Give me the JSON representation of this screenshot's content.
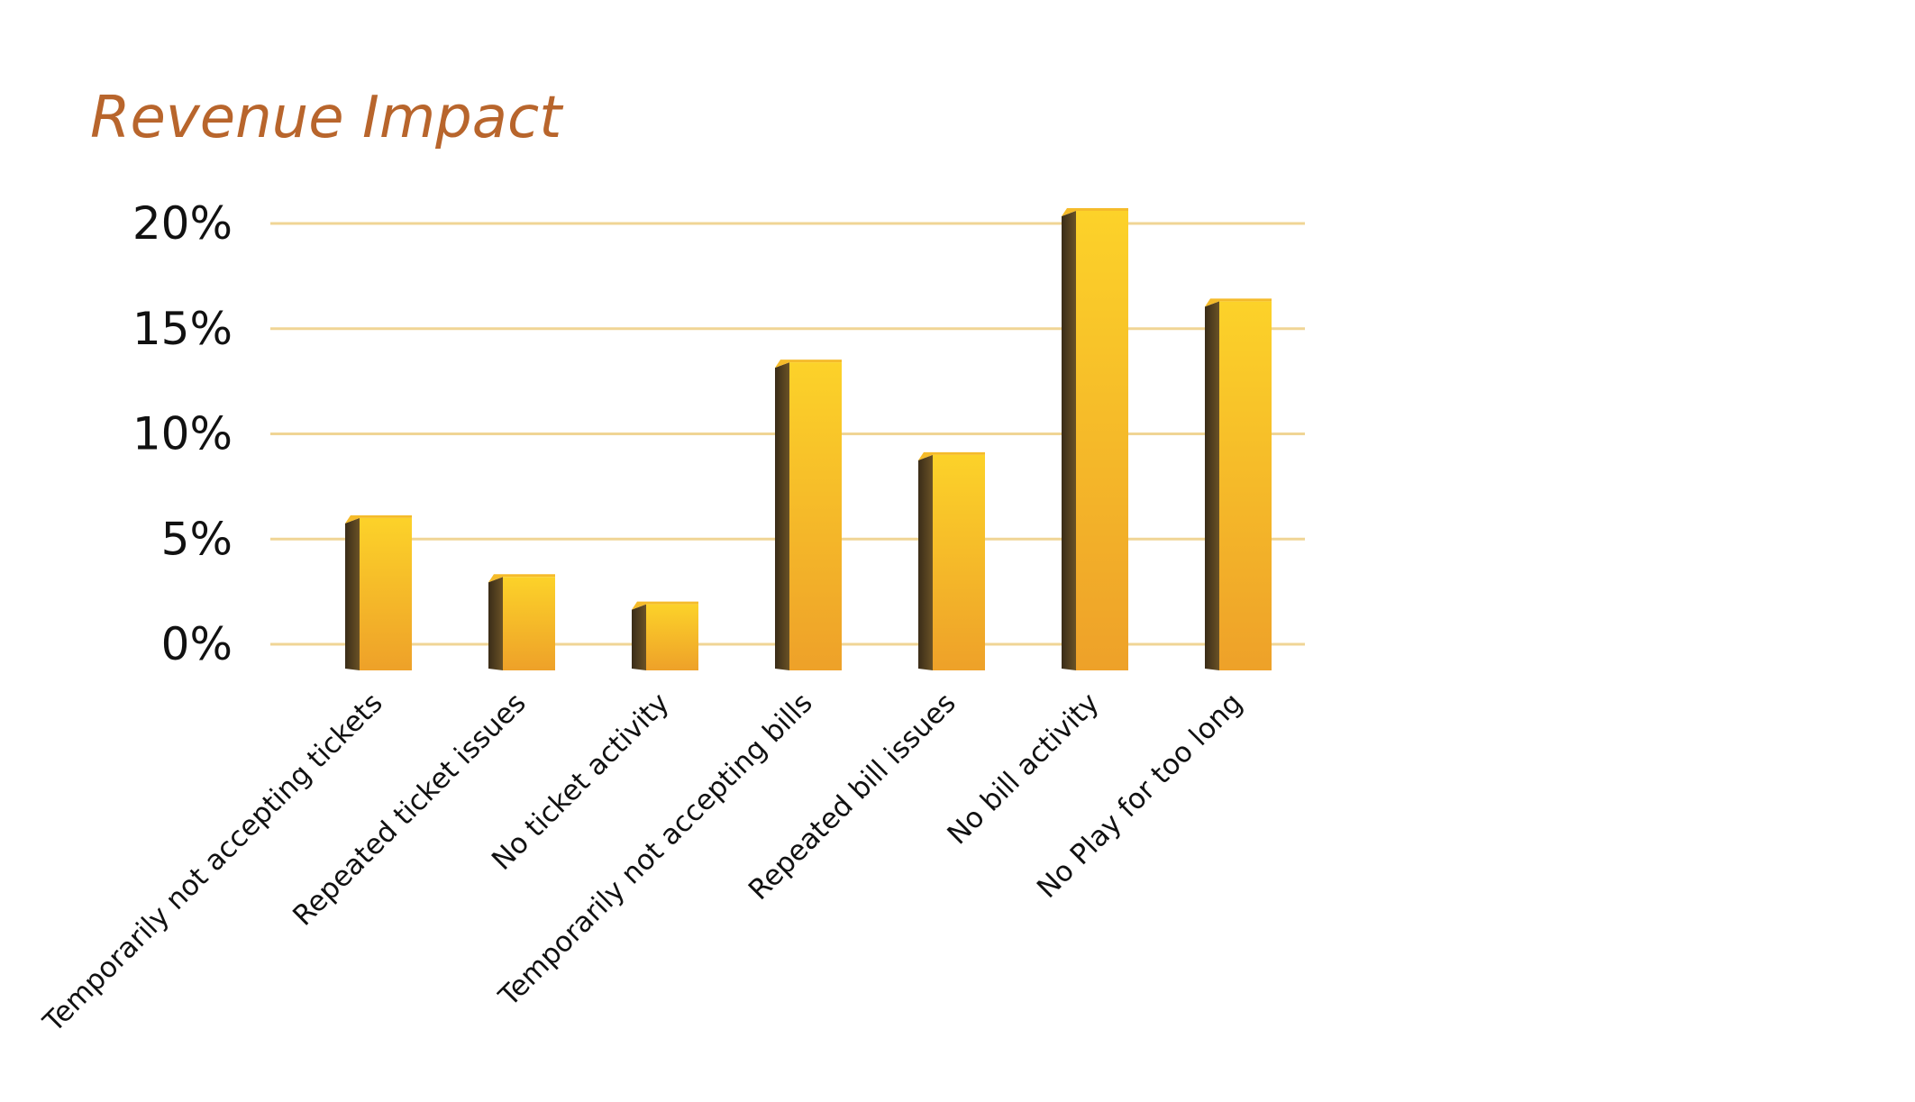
{
  "chart_data": {
    "type": "bar",
    "title": "Revenue Impact",
    "xlabel": "",
    "ylabel": "",
    "categories": [
      "Temporarily not accepting tickets",
      "Repeated ticket issues",
      "No ticket activity",
      "Temporarily not accepting bills",
      "Repeated bill issues",
      "No bill activity",
      "No Play for too long"
    ],
    "values": [
      6,
      3.2,
      1.9,
      13.4,
      9,
      20.6,
      16.3
    ],
    "ylim": [
      0,
      20
    ],
    "y_ticks": [
      "0%",
      "5%",
      "10%",
      "15%",
      "20%"
    ],
    "grid": true,
    "legend": "none",
    "style_3d": true
  },
  "colors": {
    "title": "#b8652c",
    "gridline": "#f0d595",
    "bar_front_top": "#fcd229",
    "bar_front_bottom": "#eea129",
    "bar_side": "#4a3a20",
    "bar_top": "#f5bb2a"
  }
}
